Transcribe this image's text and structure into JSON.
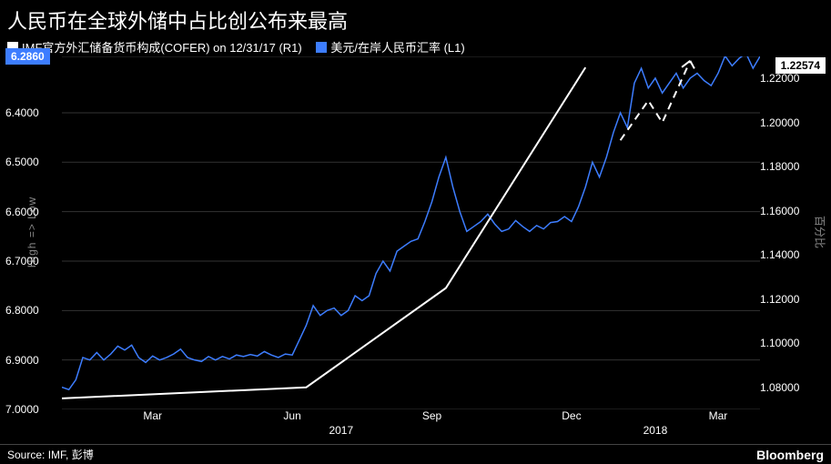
{
  "title": "人民币在全球外储中占比创公布来最高",
  "legend": {
    "series1": {
      "label": "IMF官方外汇储备货币构成(COFER) on 12/31/17 (R1)",
      "color": "#ffffff"
    },
    "series2": {
      "label": "美元/在岸人民币汇率 (L1)",
      "color": "#3d7dff"
    }
  },
  "left_axis": {
    "title": "High => Low",
    "ticks": [
      6.286,
      6.4,
      6.5,
      6.6,
      6.7,
      6.8,
      6.9,
      7.0
    ],
    "badge_value": "6.2860",
    "badge_color": "#3d7dff",
    "badge_text_color": "#ffffff"
  },
  "right_axis": {
    "title": "百分比",
    "ticks": [
      1.22,
      1.2,
      1.18,
      1.16,
      1.14,
      1.12,
      1.1,
      1.08
    ],
    "badge_value": "1.22574",
    "badge_color": "#ffffff",
    "badge_text_color": "#000000"
  },
  "x_axis": {
    "months": [
      "Mar",
      "Jun",
      "Sep",
      "Dec",
      "Mar"
    ],
    "month_positions_pct": [
      13,
      33,
      53,
      73,
      94
    ],
    "years": [
      "2017",
      "2018"
    ],
    "year_positions_pct": [
      40,
      85
    ]
  },
  "grid_color": "#333333",
  "background_color": "#000000",
  "white_line": {
    "color": "#ffffff",
    "width": 2,
    "points": [
      [
        0,
        1.075
      ],
      [
        35,
        1.08
      ],
      [
        55,
        1.125
      ],
      [
        75,
        1.225
      ]
    ],
    "dashed_segment": [
      [
        80,
        1.192
      ],
      [
        84,
        1.21
      ],
      [
        86,
        1.2
      ],
      [
        90,
        1.228
      ]
    ]
  },
  "blue_line": {
    "color": "#3d7dff",
    "width": 1.5,
    "points": [
      [
        0,
        6.955
      ],
      [
        1,
        6.96
      ],
      [
        2,
        6.94
      ],
      [
        3,
        6.895
      ],
      [
        4,
        6.9
      ],
      [
        5,
        6.885
      ],
      [
        6,
        6.9
      ],
      [
        7,
        6.888
      ],
      [
        8,
        6.872
      ],
      [
        9,
        6.88
      ],
      [
        10,
        6.87
      ],
      [
        11,
        6.895
      ],
      [
        12,
        6.905
      ],
      [
        13,
        6.892
      ],
      [
        14,
        6.9
      ],
      [
        15,
        6.895
      ],
      [
        16,
        6.888
      ],
      [
        17,
        6.878
      ],
      [
        18,
        6.895
      ],
      [
        19,
        6.9
      ],
      [
        20,
        6.903
      ],
      [
        21,
        6.893
      ],
      [
        22,
        6.9
      ],
      [
        23,
        6.893
      ],
      [
        24,
        6.898
      ],
      [
        25,
        6.89
      ],
      [
        26,
        6.893
      ],
      [
        27,
        6.889
      ],
      [
        28,
        6.892
      ],
      [
        29,
        6.883
      ],
      [
        30,
        6.89
      ],
      [
        31,
        6.895
      ],
      [
        32,
        6.888
      ],
      [
        33,
        6.89
      ],
      [
        34,
        6.86
      ],
      [
        35,
        6.83
      ],
      [
        36,
        6.79
      ],
      [
        37,
        6.81
      ],
      [
        38,
        6.8
      ],
      [
        39,
        6.795
      ],
      [
        40,
        6.81
      ],
      [
        41,
        6.8
      ],
      [
        42,
        6.77
      ],
      [
        43,
        6.78
      ],
      [
        44,
        6.77
      ],
      [
        45,
        6.725
      ],
      [
        46,
        6.7
      ],
      [
        47,
        6.72
      ],
      [
        48,
        6.68
      ],
      [
        49,
        6.67
      ],
      [
        50,
        6.66
      ],
      [
        51,
        6.655
      ],
      [
        52,
        6.62
      ],
      [
        53,
        6.58
      ],
      [
        54,
        6.53
      ],
      [
        55,
        6.49
      ],
      [
        56,
        6.55
      ],
      [
        57,
        6.6
      ],
      [
        58,
        6.64
      ],
      [
        59,
        6.63
      ],
      [
        60,
        6.62
      ],
      [
        61,
        6.605
      ],
      [
        62,
        6.625
      ],
      [
        63,
        6.64
      ],
      [
        64,
        6.635
      ],
      [
        65,
        6.618
      ],
      [
        66,
        6.63
      ],
      [
        67,
        6.64
      ],
      [
        68,
        6.628
      ],
      [
        69,
        6.635
      ],
      [
        70,
        6.622
      ],
      [
        71,
        6.62
      ],
      [
        72,
        6.61
      ],
      [
        73,
        6.62
      ],
      [
        74,
        6.59
      ],
      [
        75,
        6.55
      ],
      [
        76,
        6.5
      ],
      [
        77,
        6.53
      ],
      [
        78,
        6.49
      ],
      [
        79,
        6.44
      ],
      [
        80,
        6.4
      ],
      [
        81,
        6.43
      ],
      [
        82,
        6.34
      ],
      [
        83,
        6.31
      ],
      [
        84,
        6.35
      ],
      [
        85,
        6.33
      ],
      [
        86,
        6.36
      ],
      [
        87,
        6.34
      ],
      [
        88,
        6.32
      ],
      [
        89,
        6.35
      ],
      [
        90,
        6.33
      ],
      [
        91,
        6.32
      ],
      [
        92,
        6.335
      ],
      [
        93,
        6.345
      ],
      [
        94,
        6.32
      ],
      [
        95,
        6.285
      ],
      [
        96,
        6.305
      ],
      [
        97,
        6.29
      ],
      [
        98,
        6.28
      ],
      [
        99,
        6.31
      ],
      [
        100,
        6.286
      ]
    ]
  },
  "footer": {
    "source": "Source: IMF, 彭博",
    "brand": "Bloomberg"
  }
}
